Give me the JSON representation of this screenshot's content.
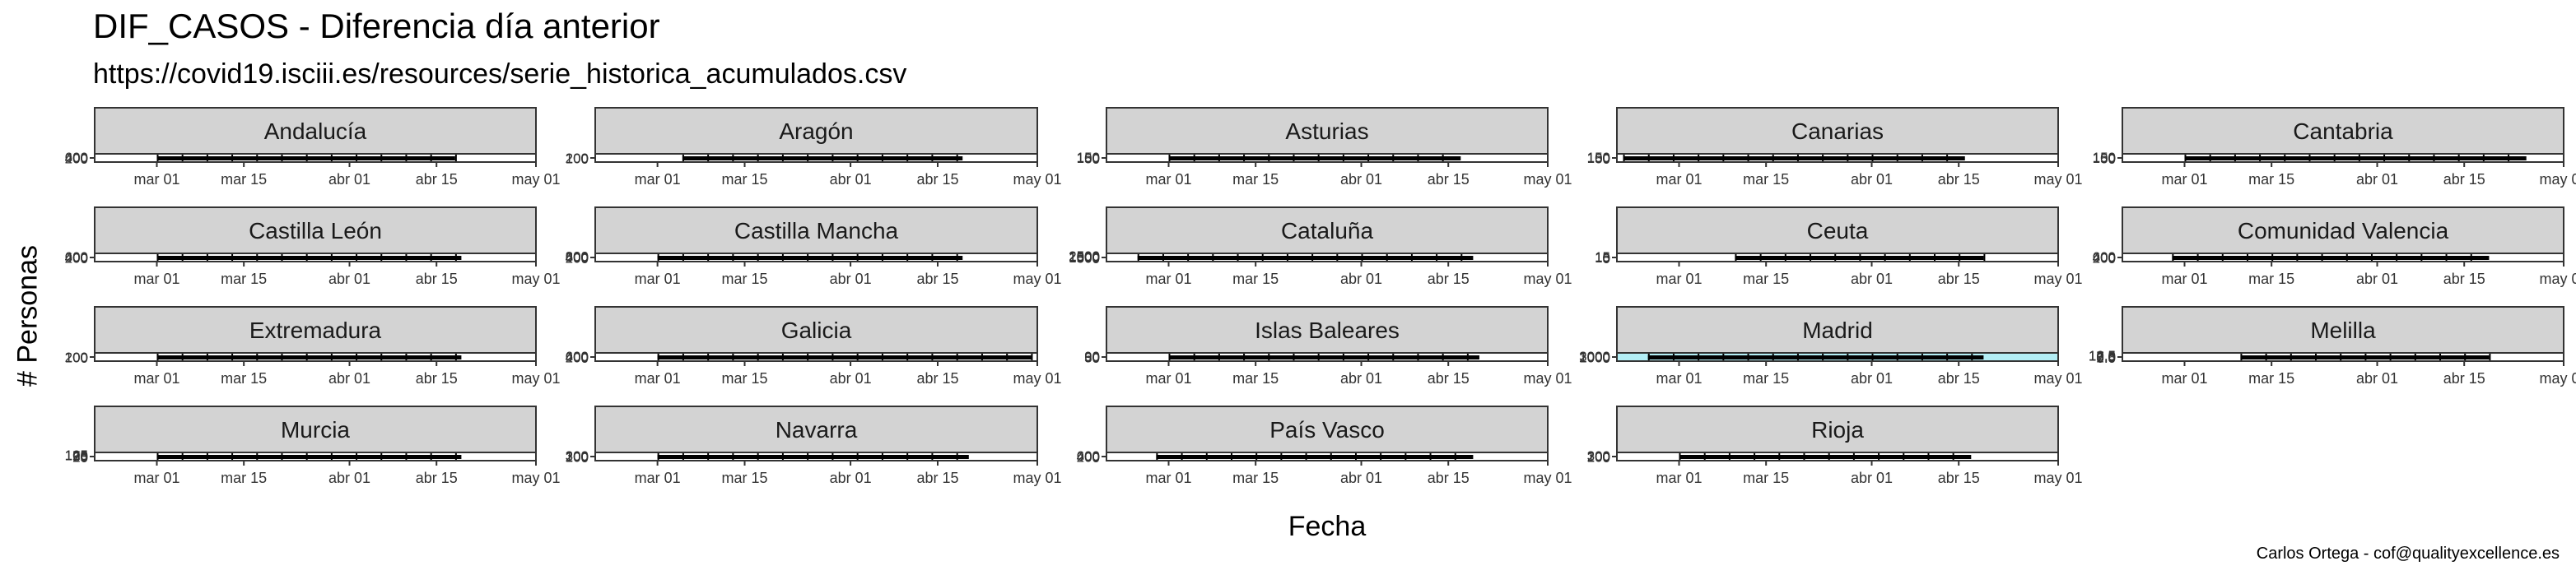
{
  "title": "DIF_CASOS - Diferencia día anterior",
  "subtitle": "https://covid19.isciii.es/resources/serie_historica_acumulados.csv",
  "caption": "Carlos Ortega - cof@qualityexcellence.es",
  "colors": {
    "strip": "#d3d3d3",
    "highlight": "#b3eef5",
    "bars": "#000000"
  },
  "chart_data": {
    "type": "bar",
    "xlabel": "Fecha",
    "ylabel": "# Personas",
    "x_ticks": [
      "mar 01",
      "mar 15",
      "abr 01",
      "abr 15",
      "may 01"
    ],
    "x_range": [
      "2020-02-20",
      "2020-05-01"
    ],
    "grid": false,
    "facets": [
      {
        "name": "Andalucía",
        "y_ticks": [
          "0",
          "200",
          "400",
          "600"
        ],
        "highlight": false,
        "start": "2020-03-01",
        "end": "2020-04-18"
      },
      {
        "name": "Aragón",
        "y_ticks": [
          "0",
          "100",
          "200"
        ],
        "highlight": false,
        "start": "2020-03-05",
        "end": "2020-04-19"
      },
      {
        "name": "Asturias",
        "y_ticks": [
          "0",
          "50",
          "100",
          "150"
        ],
        "highlight": false,
        "start": "2020-03-01",
        "end": "2020-04-17"
      },
      {
        "name": "Canarias",
        "y_ticks": [
          "0",
          "50",
          "100",
          "150"
        ],
        "highlight": false,
        "start": "2020-02-21",
        "end": "2020-04-16"
      },
      {
        "name": "Cantabria",
        "y_ticks": [
          "0",
          "50",
          "100",
          "150"
        ],
        "highlight": false,
        "start": "2020-03-01",
        "end": "2020-04-25"
      },
      {
        "name": "Castilla León",
        "y_ticks": [
          "0",
          "200",
          "400",
          "600"
        ],
        "highlight": false,
        "start": "2020-03-01",
        "end": "2020-04-19"
      },
      {
        "name": "Castilla Mancha",
        "y_ticks": [
          "0",
          "200",
          "400",
          "600",
          "800"
        ],
        "highlight": false,
        "start": "2020-03-01",
        "end": "2020-04-19"
      },
      {
        "name": "Cataluña",
        "y_ticks": [
          "0",
          "500",
          "1000",
          "1500",
          "2000",
          "2500"
        ],
        "highlight": false,
        "start": "2020-02-25",
        "end": "2020-04-19"
      },
      {
        "name": "Ceuta",
        "y_ticks": [
          "0",
          "5",
          "10",
          "15"
        ],
        "highlight": false,
        "start": "2020-03-10",
        "end": "2020-04-19"
      },
      {
        "name": "Comunidad Valencia",
        "y_ticks": [
          "0",
          "200",
          "400",
          "600"
        ],
        "highlight": false,
        "start": "2020-02-28",
        "end": "2020-04-19"
      },
      {
        "name": "Extremadura",
        "y_ticks": [
          "0",
          "100",
          "200"
        ],
        "highlight": false,
        "start": "2020-03-01",
        "end": "2020-04-19"
      },
      {
        "name": "Galicia",
        "y_ticks": [
          "0",
          "200",
          "400",
          "600"
        ],
        "highlight": false,
        "start": "2020-03-01",
        "end": "2020-04-30"
      },
      {
        "name": "Islas Baleares",
        "y_ticks": [
          "0",
          "30",
          "60",
          "90"
        ],
        "highlight": false,
        "start": "2020-03-01",
        "end": "2020-04-20"
      },
      {
        "name": "Madrid",
        "y_ticks": [
          "0",
          "1000",
          "2000",
          "3000"
        ],
        "highlight": true,
        "start": "2020-02-25",
        "end": "2020-04-19"
      },
      {
        "name": "Melilla",
        "y_ticks": [
          "0.0",
          "2.5",
          "5.0",
          "7.5",
          "10.0",
          "12.5"
        ],
        "highlight": false,
        "start": "2020-03-10",
        "end": "2020-04-19"
      },
      {
        "name": "Murcia",
        "y_ticks": [
          "0",
          "25",
          "50",
          "75",
          "100",
          "125"
        ],
        "highlight": false,
        "start": "2020-03-01",
        "end": "2020-04-19"
      },
      {
        "name": "Navarra",
        "y_ticks": [
          "0",
          "100",
          "200",
          "300"
        ],
        "highlight": false,
        "start": "2020-03-01",
        "end": "2020-04-20"
      },
      {
        "name": "País Vasco",
        "y_ticks": [
          "0",
          "200",
          "400",
          "600"
        ],
        "highlight": false,
        "start": "2020-02-28",
        "end": "2020-04-19"
      },
      {
        "name": "Rioja",
        "y_ticks": [
          "0",
          "100",
          "200",
          "300"
        ],
        "highlight": false,
        "start": "2020-03-01",
        "end": "2020-04-17"
      }
    ]
  }
}
